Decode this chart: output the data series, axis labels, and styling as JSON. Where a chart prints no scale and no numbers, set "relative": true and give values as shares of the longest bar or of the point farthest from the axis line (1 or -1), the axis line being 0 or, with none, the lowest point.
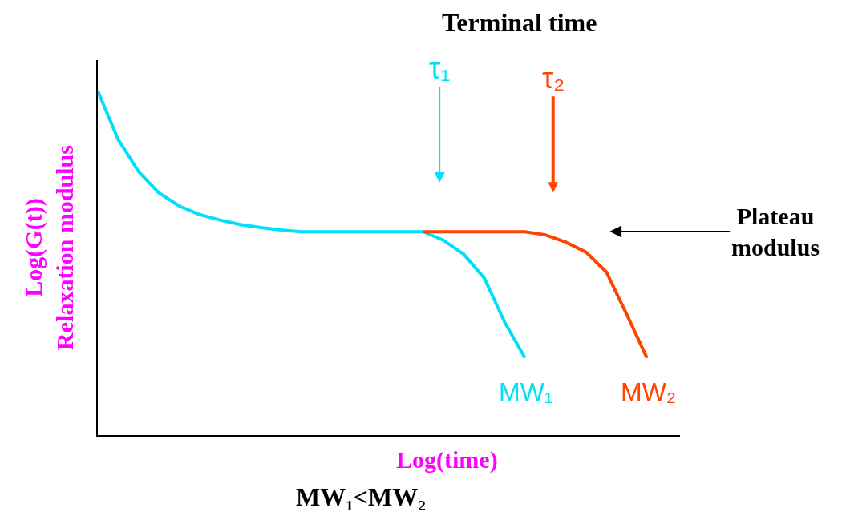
{
  "chart_data": {
    "type": "line",
    "relative": true,
    "title": "Terminal time",
    "xlabel": "Log(time)",
    "ylabel": "Log(G(t))\nRelaxation modulus",
    "legend": false,
    "marker": "none",
    "line_style": "solid",
    "categories": [
      null,
      null,
      null,
      null,
      null,
      null,
      null,
      null,
      null,
      null,
      null,
      null,
      null,
      null,
      null,
      null,
      null,
      null,
      null,
      null,
      null,
      null,
      null,
      null,
      null,
      null,
      null,
      null
    ],
    "series": [
      {
        "name": "MW₁",
        "color": "#00e0f8",
        "values": [
          1.0,
          0.859,
          0.766,
          0.704,
          0.666,
          0.641,
          0.625,
          0.612,
          0.603,
          0.596,
          0.591,
          0.591,
          0.591,
          0.591,
          0.591,
          0.591,
          0.591,
          0.566,
          0.525,
          0.456,
          0.328,
          0.224,
          null,
          null,
          null,
          null,
          null,
          null
        ]
      },
      {
        "name": "MW₂",
        "color": "#ff4400",
        "values": [
          null,
          null,
          null,
          null,
          null,
          null,
          null,
          null,
          null,
          null,
          null,
          null,
          null,
          null,
          null,
          null,
          0.591,
          0.591,
          0.591,
          0.591,
          0.591,
          0.591,
          0.582,
          0.561,
          0.532,
          0.474,
          0.351,
          0.224
        ]
      }
    ],
    "annotations": [
      "τ₁",
      "τ₂",
      "Plateau\nmodulus",
      "MW₁<MW₂"
    ]
  }
}
